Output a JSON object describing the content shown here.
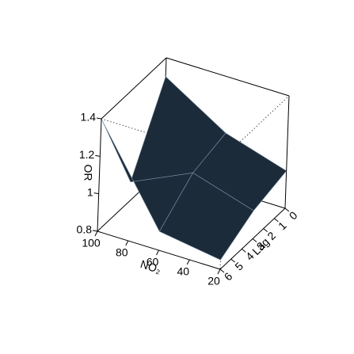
{
  "chart_data": {
    "type": "surface",
    "x_label": "NO₂",
    "y_label": "Lag",
    "z_label": "OR",
    "x": [
      20,
      60,
      100
    ],
    "y": [
      0,
      3,
      6
    ],
    "z": [
      [
        1.0,
        1.1,
        1.3
      ],
      [
        0.95,
        1.05,
        0.9
      ],
      [
        0.85,
        0.9,
        1.4
      ]
    ],
    "xlim": [
      20,
      100
    ],
    "ylim": [
      0,
      6
    ],
    "zlim": [
      0.8,
      1.4
    ],
    "xticks": [
      20,
      40,
      60,
      80,
      100
    ],
    "yticks": [
      0,
      1,
      2,
      3,
      4,
      5,
      6
    ],
    "zticks": [
      0.8,
      1.0,
      1.2,
      1.4
    ],
    "color": "#1c2b3a"
  }
}
